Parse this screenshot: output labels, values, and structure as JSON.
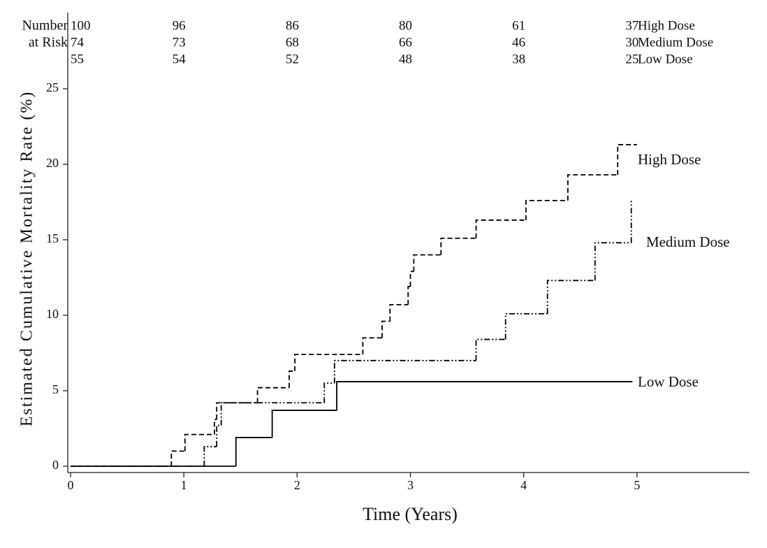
{
  "chart_data": {
    "type": "step",
    "xlabel": "Time (Years)",
    "ylabel": "Estimated Cumulative Mortality Rate (%)",
    "xlim": [
      0,
      6
    ],
    "xticks": [
      0,
      1,
      2,
      3,
      4,
      5
    ],
    "ylim": [
      0,
      30
    ],
    "yticks": [
      0,
      5,
      10,
      15,
      20,
      25
    ],
    "series": [
      {
        "name": "High Dose",
        "color": "#000000",
        "linestyle": "dashed",
        "x": [
          0,
          0.89,
          1.01,
          1.27,
          1.29,
          1.65,
          1.93,
          1.98,
          2.58,
          2.75,
          2.82,
          2.98,
          3.0,
          3.03,
          3.27,
          3.58,
          4.02,
          4.39,
          4.83,
          5.0
        ],
        "values": [
          0,
          1.0,
          2.1,
          3.1,
          4.2,
          5.2,
          6.3,
          7.4,
          8.5,
          9.6,
          10.7,
          11.9,
          12.9,
          14.0,
          15.1,
          16.3,
          17.6,
          19.3,
          21.3,
          21.3
        ]
      },
      {
        "name": "Medium Dose",
        "color": "#000000",
        "linestyle": "dashdot",
        "x": [
          0,
          1.18,
          1.29,
          1.33,
          2.24,
          2.33,
          3.58,
          3.84,
          4.21,
          4.63,
          4.95
        ],
        "values": [
          0,
          1.3,
          2.7,
          4.2,
          5.5,
          7.0,
          8.4,
          10.1,
          12.3,
          14.8,
          17.6
        ]
      },
      {
        "name": "Low Dose",
        "color": "#000000",
        "linestyle": "solid",
        "x": [
          0,
          1.46,
          1.78,
          2.35,
          4.96
        ],
        "values": [
          0,
          1.9,
          3.7,
          5.6,
          5.6
        ]
      }
    ],
    "risk_table": {
      "title": [
        "Number",
        "at Risk"
      ],
      "rows": [
        [
          100,
          96,
          86,
          80,
          61,
          37
        ],
        [
          74,
          73,
          68,
          66,
          46,
          30
        ],
        [
          55,
          54,
          52,
          48,
          38,
          25
        ]
      ]
    }
  }
}
